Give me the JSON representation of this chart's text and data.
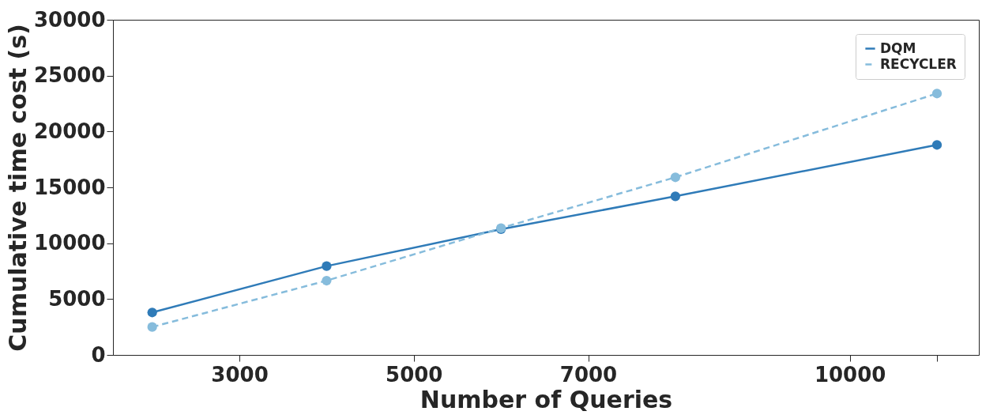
{
  "chart_data": {
    "type": "line",
    "xlabel": "Number of Queries",
    "ylabel": "Cumulative time cost (s)",
    "x": [
      2000,
      4000,
      6000,
      8000,
      11000
    ],
    "series": [
      {
        "name": "DQM",
        "color": "#2f7bb8",
        "values": [
          3800,
          7950,
          11250,
          14200,
          18800
        ],
        "line_style": "solid"
      },
      {
        "name": "RECYCLER",
        "color": "#86bcdc",
        "values": [
          2500,
          6650,
          11350,
          15900,
          23400
        ],
        "line_style": "dashed"
      }
    ],
    "xlim": [
      1550,
      11480
    ],
    "xticks": [
      3000,
      5000,
      7000,
      10000,
      {
        "value": 11000,
        "label": null
      }
    ],
    "ylim": [
      0,
      30000
    ],
    "yticks": [
      0,
      5000,
      10000,
      15000,
      20000,
      25000,
      30000
    ],
    "grid": false,
    "legend": "top right",
    "marker": "circle"
  }
}
